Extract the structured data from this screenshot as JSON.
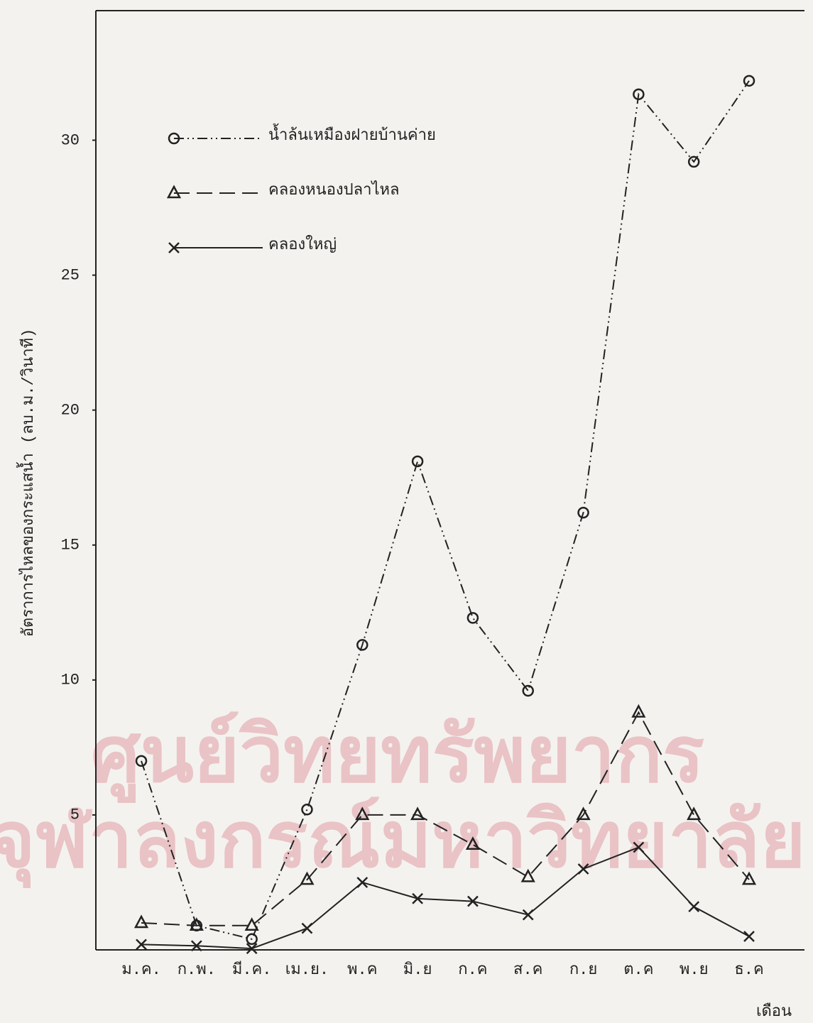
{
  "chart_data": {
    "type": "line",
    "y_label": "อัตราการไหลของกระแสน้ำ   (ลบ.ม./วินาที)",
    "x_label": "เดือน",
    "categories": [
      "ม.ค.",
      "ก.พ.",
      "มี.ค.",
      "เม.ย.",
      "พ.ค",
      "มิ.ย",
      "ก.ค",
      "ส.ค",
      "ก.ย",
      "ต.ค",
      "พ.ย",
      "ธ.ค"
    ],
    "series": [
      {
        "name": "น้ำล้นเหมืองฝายบ้านค่าย",
        "color": "#222222",
        "style": "dash-dot-dot",
        "marker": "circle",
        "values": [
          7.0,
          0.9,
          0.4,
          5.2,
          11.3,
          18.1,
          12.3,
          9.6,
          16.2,
          31.7,
          29.2,
          32.2
        ]
      },
      {
        "name": "คลองหนองปลาไหล",
        "color": "#222222",
        "style": "dashed",
        "marker": "triangle",
        "values": [
          1.0,
          0.9,
          0.9,
          2.6,
          5.0,
          5.0,
          3.9,
          2.7,
          5.0,
          8.8,
          5.0,
          2.6
        ]
      },
      {
        "name": "คลองใหญ่",
        "color": "#222222",
        "style": "solid",
        "marker": "x",
        "values": [
          0.2,
          0.15,
          0.05,
          0.8,
          2.5,
          1.9,
          1.8,
          1.3,
          3.0,
          3.8,
          1.6,
          0.5
        ]
      }
    ],
    "ylim": [
      0,
      34.8
    ],
    "yticks": [
      5,
      10,
      15,
      20,
      25,
      30
    ],
    "legend": "upper left",
    "watermark": [
      "ศูนย์วิทยทรัพยากร",
      "จุฬาลงกรณ์มหาวิทยาลัย"
    ]
  }
}
